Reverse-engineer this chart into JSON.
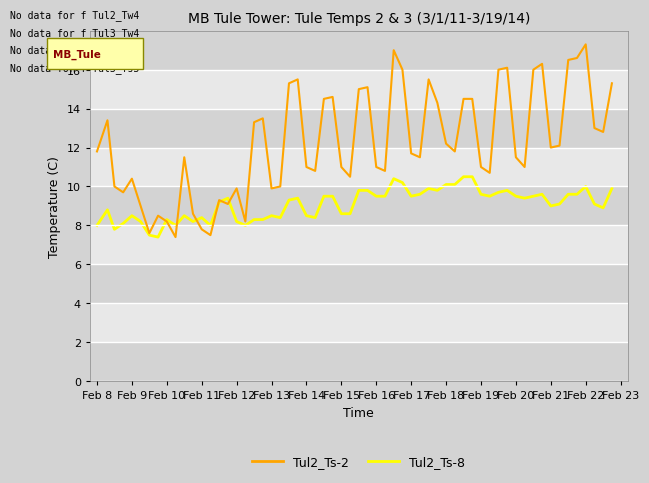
{
  "title": "MB Tule Tower: Tule Temps 2 & 3 (3/1/11-3/19/14)",
  "xlabel": "Time",
  "ylabel": "Temperature (C)",
  "ylim": [
    0,
    18
  ],
  "yticks": [
    0,
    2,
    4,
    6,
    8,
    10,
    12,
    14,
    16
  ],
  "xtick_labels": [
    "Feb 8",
    "Feb 9",
    "Feb 10",
    "Feb 11",
    "Feb 12",
    "Feb 13",
    "Feb 14",
    "Feb 15",
    "Feb 16",
    "Feb 17",
    "Feb 18",
    "Feb 19",
    "Feb 20",
    "Feb 21",
    "Feb 22",
    "Feb 23"
  ],
  "color_ts2": "#FFA500",
  "color_ts8": "#FFFF00",
  "legend_entries": [
    "Tul2_Ts-2",
    "Tul2_Ts-8"
  ],
  "no_data_texts": [
    "No data for f Tul2_Tw4",
    "No data for f Tul3_Tw4",
    "No data for f Tul3_Ts2",
    "No data for f Tul3_Ts3"
  ],
  "fig_bg": "#d3d3d3",
  "ax_bg": "#e8e8e8",
  "band_light": "#e8e8e8",
  "band_dark": "#d3d3d3",
  "ts2_x": [
    0,
    0.3,
    0.5,
    0.75,
    1.0,
    1.25,
    1.5,
    1.75,
    2.0,
    2.25,
    2.5,
    2.75,
    3.0,
    3.25,
    3.5,
    3.75,
    4.0,
    4.25,
    4.5,
    4.75,
    5.0,
    5.25,
    5.5,
    5.75,
    6.0,
    6.25,
    6.5,
    6.75,
    7.0,
    7.25,
    7.5,
    7.75,
    8.0,
    8.25,
    8.5,
    8.75,
    9.0,
    9.25,
    9.5,
    9.75,
    10.0,
    10.25,
    10.5,
    10.75,
    11.0,
    11.25,
    11.5,
    11.75,
    12.0,
    12.25,
    12.5,
    12.75,
    13.0,
    13.25,
    13.5,
    13.75,
    14.0,
    14.25,
    14.5,
    14.75
  ],
  "ts2_y": [
    11.8,
    13.4,
    10.0,
    9.7,
    10.4,
    9.0,
    7.6,
    8.5,
    8.2,
    7.4,
    11.5,
    8.6,
    7.8,
    7.5,
    9.3,
    9.1,
    9.9,
    8.2,
    13.3,
    13.5,
    9.9,
    10.0,
    15.3,
    15.5,
    11.0,
    10.8,
    14.5,
    14.6,
    11.0,
    10.5,
    15.0,
    15.1,
    11.0,
    10.8,
    17.0,
    16.0,
    11.7,
    11.5,
    15.5,
    14.3,
    12.2,
    11.8,
    14.5,
    14.5,
    11.0,
    10.7,
    16.0,
    16.1,
    11.5,
    11.0,
    16.0,
    16.3,
    12.0,
    12.1,
    16.5,
    16.6,
    17.3,
    13.0,
    12.8,
    15.3
  ],
  "ts8_x": [
    0,
    0.3,
    0.5,
    0.75,
    1.0,
    1.25,
    1.5,
    1.75,
    2.0,
    2.25,
    2.5,
    2.75,
    3.0,
    3.25,
    3.5,
    3.75,
    4.0,
    4.25,
    4.5,
    4.75,
    5.0,
    5.25,
    5.5,
    5.75,
    6.0,
    6.25,
    6.5,
    6.75,
    7.0,
    7.25,
    7.5,
    7.75,
    8.0,
    8.25,
    8.5,
    8.75,
    9.0,
    9.25,
    9.5,
    9.75,
    10.0,
    10.25,
    10.5,
    10.75,
    11.0,
    11.25,
    11.5,
    11.75,
    12.0,
    12.25,
    12.5,
    12.75,
    13.0,
    13.25,
    13.5,
    13.75,
    14.0,
    14.25,
    14.5,
    14.75
  ],
  "ts8_y": [
    8.0,
    8.8,
    7.8,
    8.1,
    8.5,
    8.2,
    7.5,
    7.4,
    8.3,
    8.0,
    8.5,
    8.2,
    8.4,
    8.0,
    9.2,
    9.4,
    8.2,
    8.0,
    8.3,
    8.3,
    8.5,
    8.4,
    9.3,
    9.4,
    8.5,
    8.4,
    9.5,
    9.5,
    8.6,
    8.6,
    9.8,
    9.8,
    9.5,
    9.5,
    10.4,
    10.2,
    9.5,
    9.6,
    9.9,
    9.8,
    10.1,
    10.1,
    10.5,
    10.5,
    9.6,
    9.5,
    9.7,
    9.8,
    9.5,
    9.4,
    9.5,
    9.6,
    9.0,
    9.1,
    9.6,
    9.6,
    10.0,
    9.1,
    8.9,
    9.9
  ]
}
